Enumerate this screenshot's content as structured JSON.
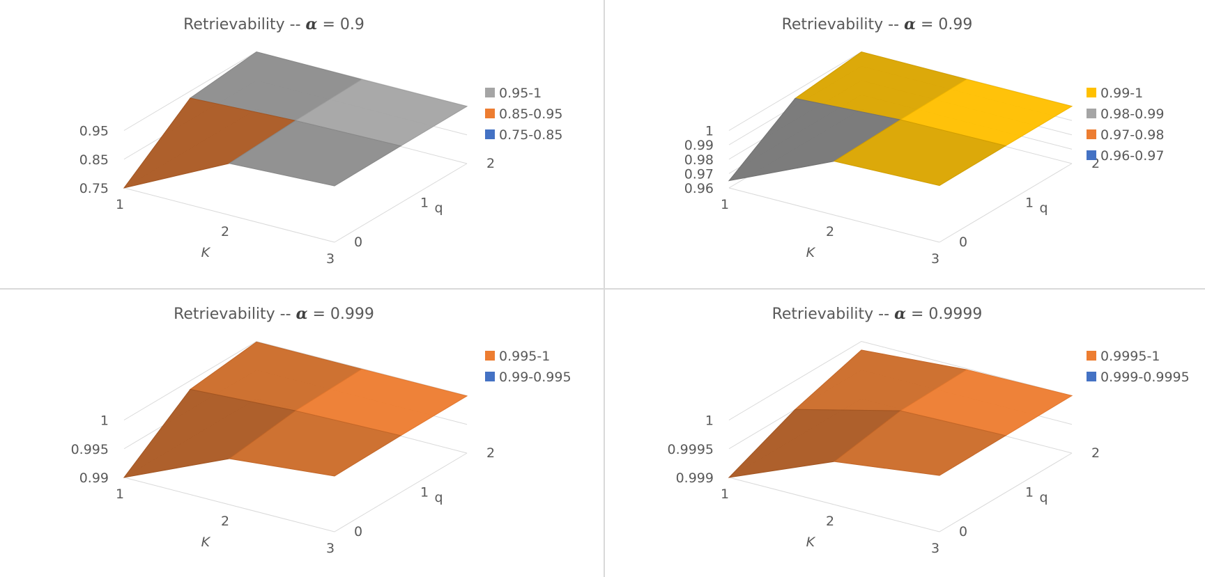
{
  "chart_data": [
    {
      "type": "surface",
      "title_prefix": "Retrievability -- ",
      "title_symbol": "α",
      "title_suffix": " = 0.9",
      "xlabel": "K",
      "ylabel": "q",
      "x_ticks": [
        "1",
        "2",
        "3"
      ],
      "q_ticks": [
        "0",
        "1",
        "2"
      ],
      "z_ticks": [
        "0.75",
        "0.85",
        "0.95"
      ],
      "zlim": [
        0.75,
        1.0
      ],
      "legend": [
        {
          "label": "0.95-1",
          "color": "#A5A5A5"
        },
        {
          "label": "0.85-0.95",
          "color": "#ED7D31"
        },
        {
          "label": "0.75-0.85",
          "color": "#4472C4"
        }
      ],
      "x": [
        1,
        2,
        3
      ],
      "q": [
        0,
        1,
        2
      ],
      "z": [
        [
          0.75,
          0.975,
          0.995
        ],
        [
          0.97,
          0.99,
          0.998
        ],
        [
          1.0,
          0.998,
          0.999
        ]
      ]
    },
    {
      "type": "surface",
      "title_prefix": "Retrievability -- ",
      "title_symbol": "α",
      "title_suffix": " = 0.99",
      "xlabel": "K",
      "ylabel": "q",
      "x_ticks": [
        "1",
        "2",
        "3"
      ],
      "q_ticks": [
        "0",
        "1",
        "2"
      ],
      "z_ticks": [
        "0.96",
        "0.97",
        "0.98",
        "0.99",
        "1"
      ],
      "zlim": [
        0.96,
        1.0
      ],
      "legend": [
        {
          "label": "0.99-1",
          "color": "#FFC000"
        },
        {
          "label": "0.98-0.99",
          "color": "#A5A5A5"
        },
        {
          "label": "0.97-0.98",
          "color": "#ED7D31"
        },
        {
          "label": "0.96-0.97",
          "color": "#4472C4"
        }
      ],
      "x": [
        1,
        2,
        3
      ],
      "q": [
        0,
        1,
        2
      ],
      "z": [
        [
          0.965,
          0.9975,
          0.9995
        ],
        [
          0.995,
          0.999,
          0.9998
        ],
        [
          1.0,
          0.9998,
          0.9999
        ]
      ]
    },
    {
      "type": "surface",
      "title_prefix": "Retrievability -- ",
      "title_symbol": "α",
      "title_suffix": " = 0.999",
      "xlabel": "K",
      "ylabel": "q",
      "x_ticks": [
        "1",
        "2",
        "3"
      ],
      "q_ticks": [
        "0",
        "1",
        "2"
      ],
      "z_ticks": [
        "0.99",
        "0.995",
        "1"
      ],
      "zlim": [
        0.99,
        1.0
      ],
      "legend": [
        {
          "label": "0.995-1",
          "color": "#ED7D31"
        },
        {
          "label": "0.99-0.995",
          "color": "#4472C4"
        }
      ],
      "x": [
        1,
        2,
        3
      ],
      "q": [
        0,
        1,
        2
      ],
      "z": [
        [
          0.99,
          0.998,
          0.9997
        ],
        [
          0.9985,
          0.9995,
          0.9999
        ],
        [
          0.9999,
          0.9999,
          0.99995
        ]
      ]
    },
    {
      "type": "surface",
      "title_prefix": "Retrievability -- ",
      "title_symbol": "α",
      "title_suffix": " = 0.9999",
      "xlabel": "K",
      "ylabel": "q",
      "x_ticks": [
        "1",
        "2",
        "3"
      ],
      "q_ticks": [
        "0",
        "1",
        "2"
      ],
      "z_ticks": [
        "0.999",
        "0.9995",
        "1"
      ],
      "zlim": [
        0.999,
        1.0
      ],
      "legend": [
        {
          "label": "0.9995-1",
          "color": "#ED7D31"
        },
        {
          "label": "0.999-0.9995",
          "color": "#4472C4"
        }
      ],
      "x": [
        1,
        2,
        3
      ],
      "q": [
        0,
        1,
        2
      ],
      "z": [
        [
          0.999,
          0.99975,
          0.99998
        ],
        [
          0.9995,
          0.99995,
          0.99999
        ],
        [
          0.99985,
          0.99998,
          1.0
        ]
      ]
    }
  ]
}
